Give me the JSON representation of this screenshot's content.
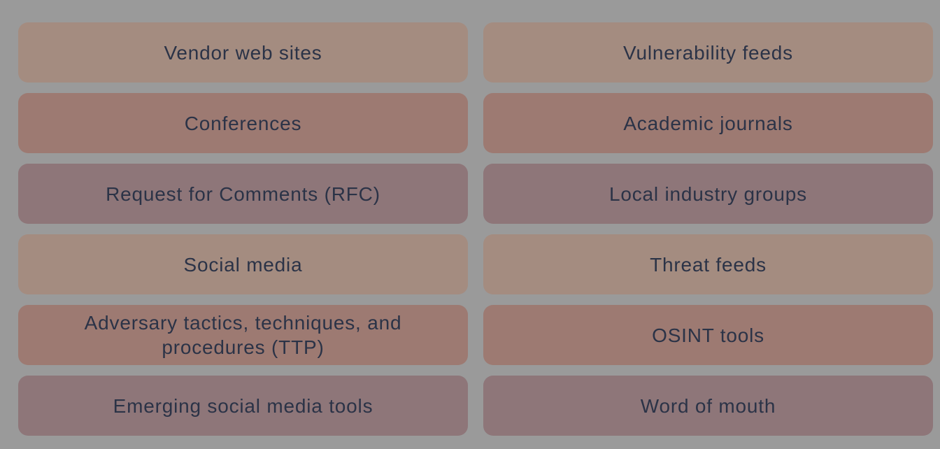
{
  "colors": {
    "background": "#9a9a9a",
    "text": "#2b3347",
    "tan": "#a48c80",
    "salmon": "#9d7a72",
    "mauve": "#8e7679"
  },
  "tiles": [
    {
      "label": "Vendor web sites",
      "color": "tan"
    },
    {
      "label": "Vulnerability feeds",
      "color": "tan"
    },
    {
      "label": "Conferences",
      "color": "salmon"
    },
    {
      "label": "Academic journals",
      "color": "salmon"
    },
    {
      "label": "Request for Comments (RFC)",
      "color": "mauve"
    },
    {
      "label": "Local industry groups",
      "color": "mauve"
    },
    {
      "label": "Social media",
      "color": "tan"
    },
    {
      "label": "Threat feeds",
      "color": "tan"
    },
    {
      "label": "Adversary tactics, techniques, and procedures (TTP)",
      "color": "salmon"
    },
    {
      "label": "OSINT tools",
      "color": "salmon"
    },
    {
      "label": "Emerging social media tools",
      "color": "mauve"
    },
    {
      "label": "Word of mouth",
      "color": "mauve"
    }
  ]
}
